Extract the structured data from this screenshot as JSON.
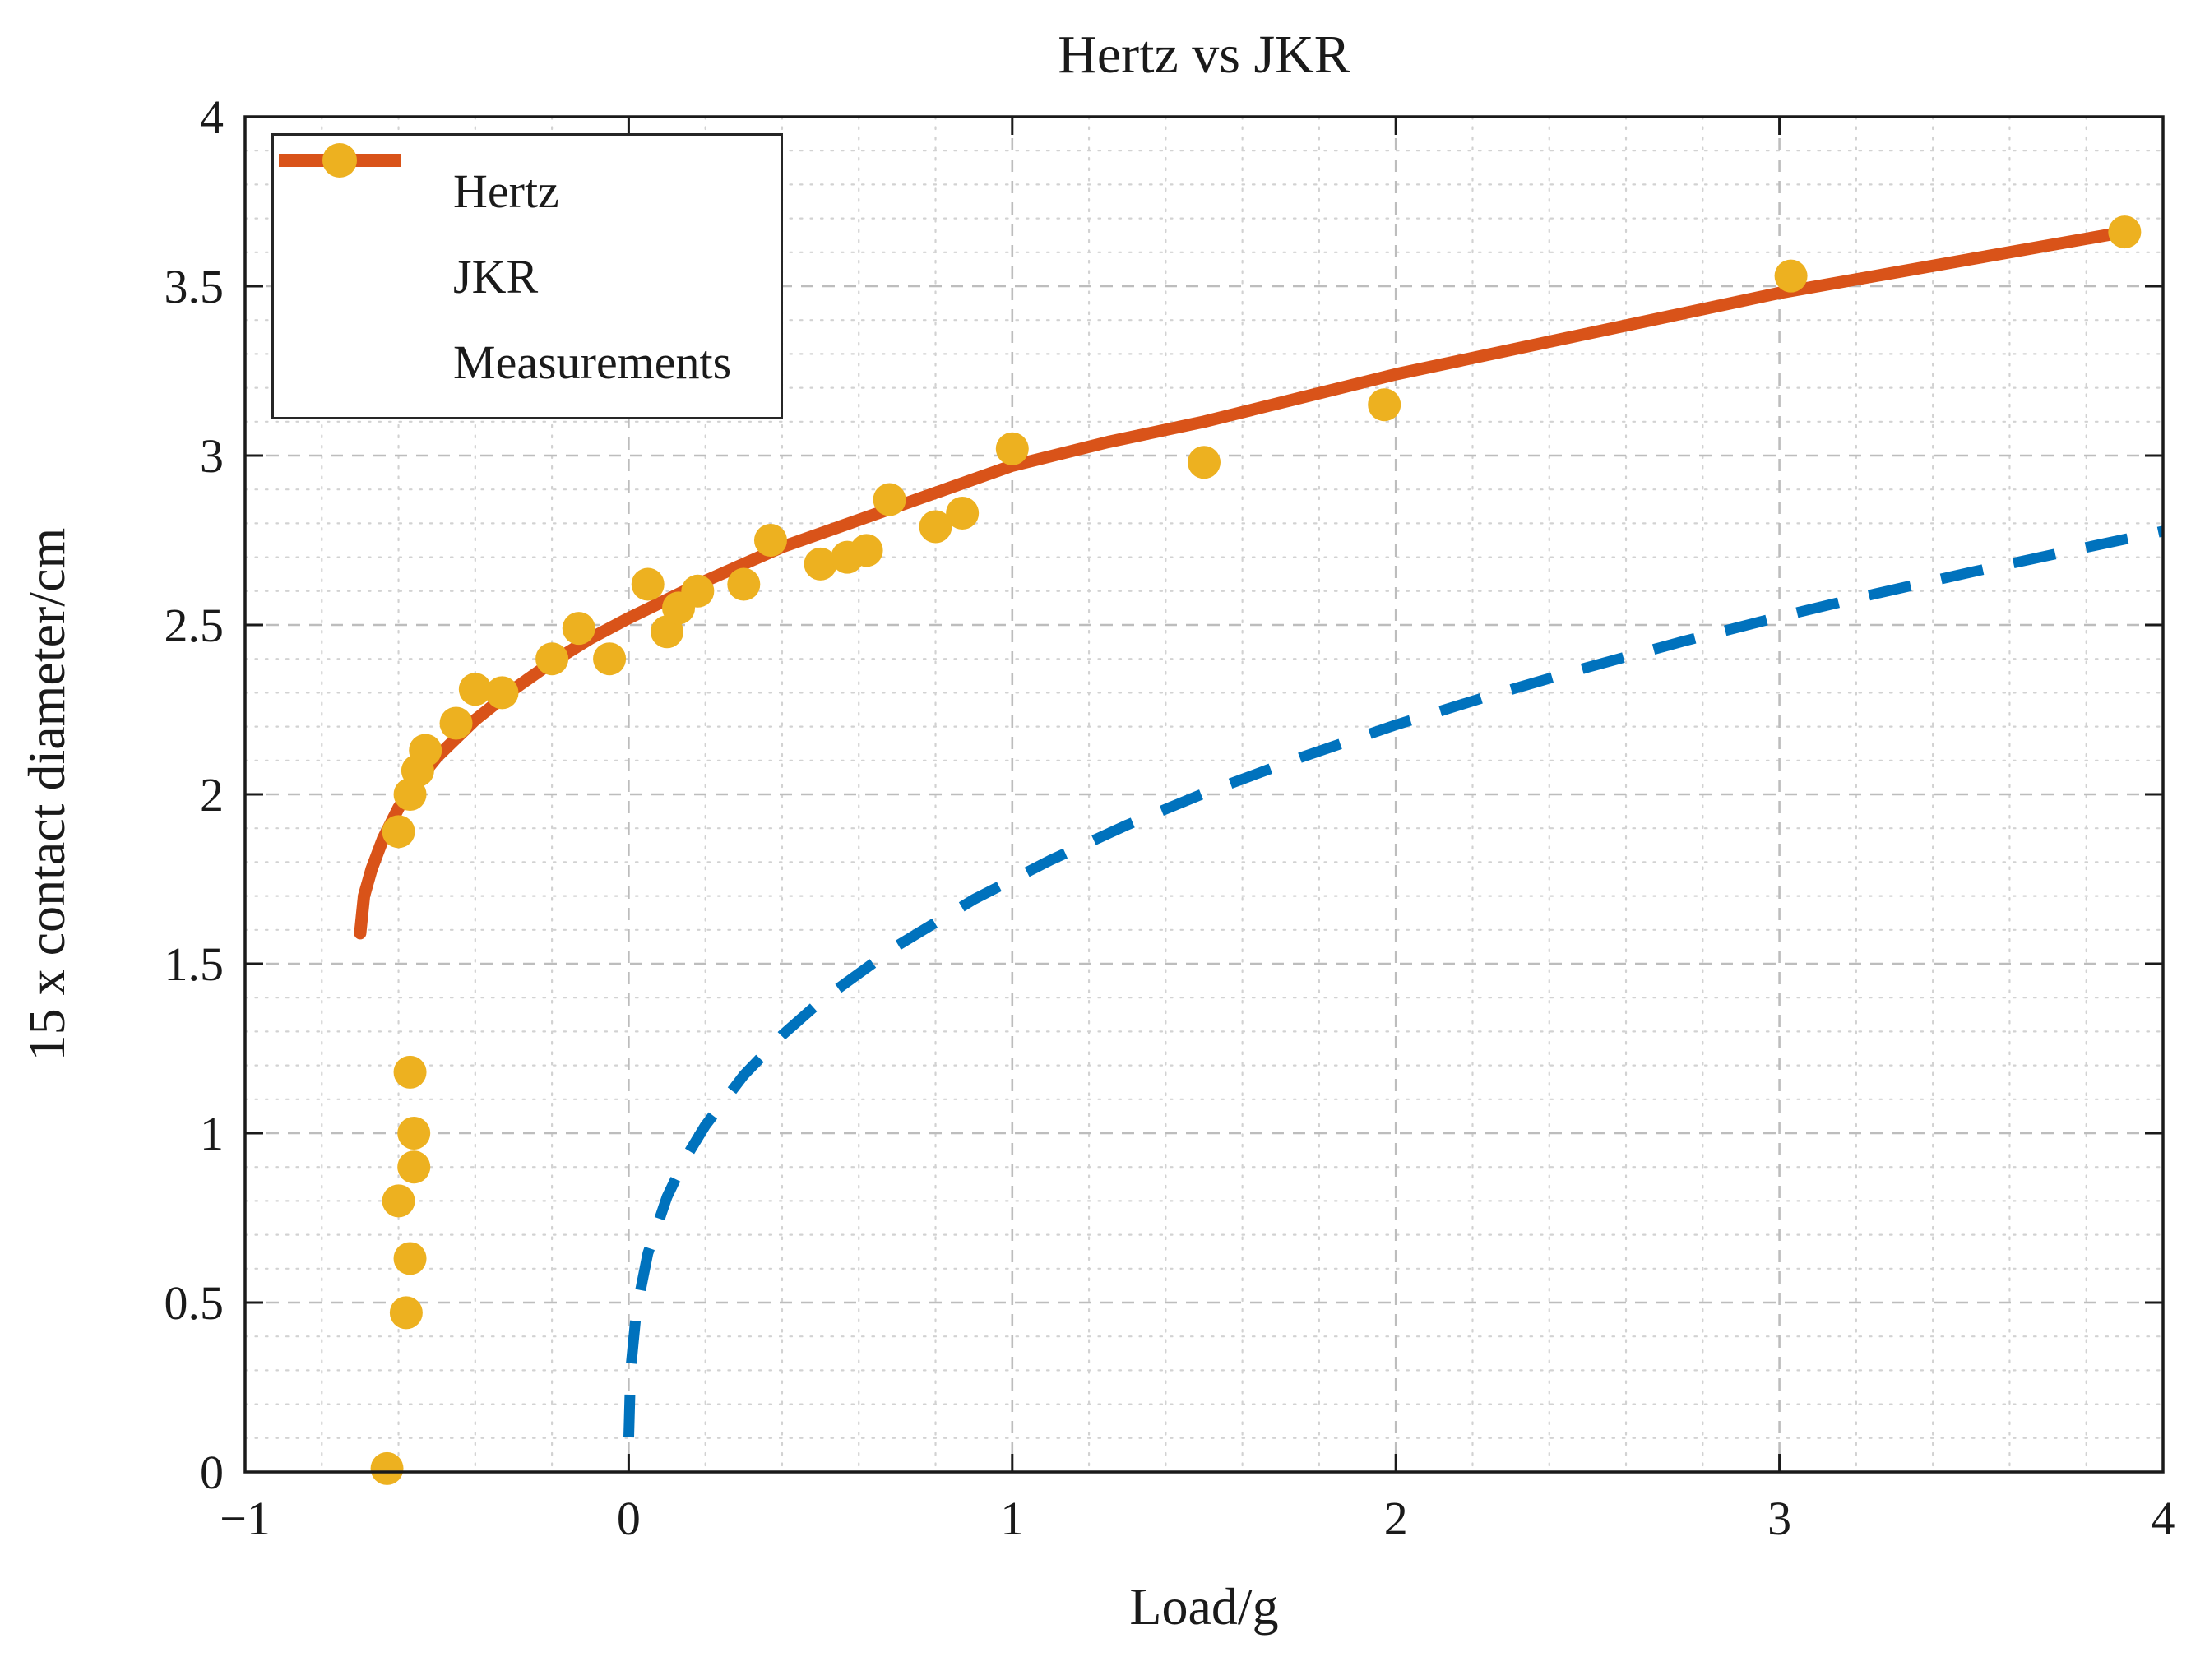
{
  "window": {
    "title": "Hertz vs JKR"
  },
  "chart_data": {
    "type": "line",
    "title": "Hertz vs JKR",
    "xlabel": "Load/g",
    "ylabel": "15 x contact diameter/cm",
    "xlim": [
      -1,
      4
    ],
    "ylim": [
      0,
      4
    ],
    "x_ticks": [
      -1,
      0,
      1,
      2,
      3,
      4
    ],
    "x_tick_labels": [
      "−1",
      "0",
      "1",
      "2",
      "3",
      "4"
    ],
    "y_ticks": [
      0,
      0.5,
      1,
      1.5,
      2,
      2.5,
      3,
      3.5,
      4
    ],
    "y_tick_labels": [
      "0",
      "0.5",
      "1",
      "1.5",
      "2",
      "2.5",
      "3",
      "3.5",
      "4"
    ],
    "grid": "on",
    "minor_grid": "on",
    "x_minor_step": 0.2,
    "y_minor_step": 0.1,
    "legend_position": "top-left",
    "colors": {
      "hertz_blue": "#0072BD",
      "jkr_orange": "#D95319",
      "measurement_yellow": "#EDB120",
      "major_grid": "#bdbdbd",
      "minor_grid": "#d2d2d2",
      "axes": "#1a1a1a"
    },
    "series": [
      {
        "name": "Hertz",
        "type": "line",
        "style": "dashed",
        "color": "#0072BD",
        "x": [
          0.0002,
          0.005,
          0.02,
          0.05,
          0.1,
          0.15,
          0.2,
          0.3,
          0.4,
          0.5,
          0.7,
          0.9,
          1.1,
          1.3,
          1.5,
          1.75,
          2.0,
          2.25,
          2.5,
          2.75,
          3.0,
          3.25,
          3.5,
          3.75,
          4.0
        ],
        "y": [
          0.102,
          0.299,
          0.475,
          0.645,
          0.812,
          0.93,
          1.023,
          1.171,
          1.289,
          1.389,
          1.553,
          1.69,
          1.806,
          1.91,
          2.003,
          2.108,
          2.205,
          2.293,
          2.375,
          2.452,
          2.524,
          2.592,
          2.656,
          2.717,
          2.777
        ]
      },
      {
        "name": "JKR",
        "type": "line",
        "style": "solid",
        "color": "#D95319",
        "x": [
          -0.7,
          -0.69,
          -0.67,
          -0.64,
          -0.6,
          -0.55,
          -0.5,
          -0.4,
          -0.3,
          -0.2,
          -0.1,
          0.0,
          0.2,
          0.4,
          0.6,
          0.8,
          1.0,
          1.25,
          1.5,
          1.75,
          2.0,
          2.5,
          3.0,
          3.5,
          3.9
        ],
        "y": [
          1.59,
          1.7,
          1.78,
          1.87,
          1.96,
          2.04,
          2.11,
          2.22,
          2.31,
          2.39,
          2.46,
          2.52,
          2.63,
          2.73,
          2.81,
          2.89,
          2.97,
          3.04,
          3.1,
          3.17,
          3.24,
          3.36,
          3.48,
          3.58,
          3.66
        ]
      },
      {
        "name": "Measurements",
        "type": "scatter",
        "color": "#EDB120",
        "x": [
          -0.63,
          -0.58,
          -0.57,
          -0.6,
          -0.56,
          -0.56,
          -0.57,
          -0.6,
          -0.57,
          -0.55,
          -0.53,
          -0.45,
          -0.4,
          -0.33,
          -0.2,
          -0.13,
          -0.05,
          0.05,
          0.1,
          0.13,
          0.18,
          0.3,
          0.37,
          0.5,
          0.57,
          0.62,
          0.68,
          0.8,
          0.87,
          1.0,
          1.5,
          1.97,
          3.03,
          3.9
        ],
        "y": [
          0.01,
          0.47,
          0.63,
          0.8,
          0.9,
          1.0,
          1.18,
          1.89,
          2.0,
          2.07,
          2.13,
          2.21,
          2.31,
          2.3,
          2.4,
          2.49,
          2.4,
          2.62,
          2.48,
          2.55,
          2.6,
          2.62,
          2.75,
          2.68,
          2.7,
          2.72,
          2.87,
          2.79,
          2.83,
          3.02,
          2.98,
          3.15,
          3.53,
          3.66
        ]
      }
    ]
  }
}
